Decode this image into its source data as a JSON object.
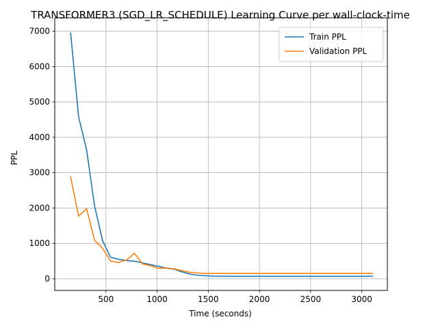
{
  "chart_data": {
    "type": "line",
    "title": "TRANSFORMER3 (SGD_LR_SCHEDULE) Learning Curve per wall-clock-time",
    "xlabel": "Time (seconds)",
    "ylabel": "PPL",
    "xlim": [
      0,
      3250
    ],
    "ylim": [
      -330,
      7380
    ],
    "x_ticks": [
      500,
      1000,
      1500,
      2000,
      2500,
      3000
    ],
    "y_ticks": [
      0,
      1000,
      2000,
      3000,
      4000,
      5000,
      6000,
      7000
    ],
    "grid": true,
    "legend_position": "top-right",
    "series": [
      {
        "name": "Train PPL",
        "color": "#1f77b4",
        "x": [
          155,
          233,
          311,
          389,
          467,
          545,
          623,
          701,
          779,
          857,
          935,
          1013,
          1091,
          1169,
          1247,
          1325,
          1403,
          1481,
          1559,
          1637,
          1715,
          1793,
          1871,
          1949,
          2027,
          2105,
          2183,
          2261,
          2339,
          2417,
          2495,
          2573,
          2651,
          2729,
          2807,
          2885,
          2963,
          3041,
          3105
        ],
        "y": [
          6950,
          4580,
          3650,
          2060,
          1080,
          610,
          550,
          515,
          495,
          450,
          400,
          350,
          300,
          270,
          190,
          130,
          95,
          85,
          75,
          72,
          70,
          70,
          70,
          70,
          70,
          70,
          70,
          70,
          70,
          70,
          70,
          70,
          70,
          70,
          70,
          70,
          70,
          70,
          70
        ]
      },
      {
        "name": "Validation PPL",
        "color": "#ff7f0e",
        "x": [
          155,
          233,
          311,
          389,
          467,
          545,
          623,
          701,
          779,
          857,
          935,
          1013,
          1091,
          1169,
          1247,
          1325,
          1403,
          1481,
          1559,
          1637,
          1715,
          1793,
          1871,
          1949,
          2027,
          2105,
          2183,
          2261,
          2339,
          2417,
          2495,
          2573,
          2651,
          2729,
          2807,
          2885,
          2963,
          3041,
          3105
        ],
        "y": [
          2880,
          1770,
          1980,
          1090,
          860,
          500,
          460,
          530,
          720,
          420,
          370,
          295,
          305,
          280,
          225,
          180,
          160,
          150,
          150,
          150,
          150,
          150,
          150,
          150,
          150,
          150,
          150,
          150,
          150,
          150,
          150,
          150,
          150,
          150,
          150,
          150,
          150,
          150,
          150
        ]
      }
    ]
  }
}
